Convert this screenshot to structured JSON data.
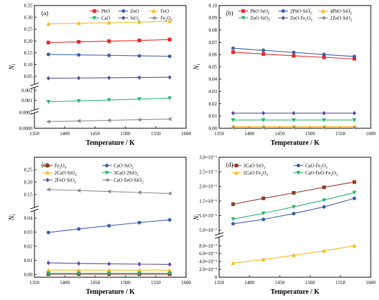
{
  "chart_data": [
    {
      "panel": "(a)",
      "type": "line",
      "title": "",
      "xlabel": "Temperature / K",
      "ylabel": "N_i",
      "xlim": [
        1350,
        1600
      ],
      "x_ticks": [
        1350,
        1400,
        1450,
        1500,
        1550,
        1600
      ],
      "x": [
        1373,
        1423,
        1473,
        1523,
        1573
      ],
      "segments": [
        {
          "ylim": [
            0.0,
            0.0001
          ],
          "ticks": [
            "0.0000",
            "0.0001"
          ]
        },
        {
          "ylim": [
            0.0,
            0.0022
          ],
          "ticks": [
            "0.001",
            "0.002"
          ]
        },
        {
          "ylim": [
            0.02,
            0.35
          ],
          "ticks": [
            "0.05",
            "0.10",
            "0.15",
            "0.20",
            "0.25",
            "0.30",
            "0.35"
          ]
        }
      ],
      "series": [
        {
          "name": "PbO",
          "marker": "square",
          "color": "#e8262a",
          "values": [
            0.193,
            0.196,
            0.199,
            0.202,
            0.206
          ]
        },
        {
          "name": "ZnO",
          "marker": "circle",
          "color": "#3a5ea8",
          "values": [
            0.143,
            0.141,
            0.139,
            0.137,
            0.135
          ]
        },
        {
          "name": "FeO",
          "marker": "triangle-up",
          "color": "#f5b921",
          "values": [
            0.272,
            0.275,
            0.277,
            0.28,
            0.283
          ]
        },
        {
          "name": "CaO",
          "marker": "triangle-down",
          "color": "#2bb673",
          "values": [
            0.00085,
            0.00094,
            0.00103,
            0.00112,
            0.00122
          ]
        },
        {
          "name": "SiO2",
          "marker": "diamond",
          "color": "#5b4a9e",
          "values": [
            0.042,
            0.043,
            0.044,
            0.045,
            0.046
          ]
        },
        {
          "name": "Fe2O3",
          "marker": "triangle-left",
          "color": "#8c8c8c",
          "values": [
            4.2e-05,
            4.6e-05,
            5e-05,
            5.4e-05,
            5.8e-05
          ]
        }
      ]
    },
    {
      "panel": "(b)",
      "type": "line",
      "title": "",
      "xlabel": "Temperature / K",
      "ylabel": "N_i",
      "xlim": [
        1350,
        1600
      ],
      "x_ticks": [
        1350,
        1400,
        1450,
        1500,
        1550,
        1600
      ],
      "x": [
        1373,
        1423,
        1473,
        1523,
        1573
      ],
      "segments": [
        {
          "ylim": [
            0.0,
            0.1
          ],
          "ticks": [
            "0.00",
            "0.01",
            "0.02",
            "0.03",
            "0.04",
            "0.05",
            "0.06",
            "0.07",
            "0.08",
            "0.09",
            "0.10"
          ]
        }
      ],
      "series": [
        {
          "name": "PbO·SiO2",
          "marker": "square",
          "color": "#e8262a",
          "values": [
            0.062,
            0.0605,
            0.059,
            0.0578,
            0.0566
          ]
        },
        {
          "name": "2PbO·SiO2",
          "marker": "circle",
          "color": "#3a5ea8",
          "values": [
            0.0652,
            0.0635,
            0.0618,
            0.0601,
            0.0585
          ]
        },
        {
          "name": "4PbO·SiO2",
          "marker": "triangle-up",
          "color": "#f5b921",
          "values": [
            0.0015,
            0.0015,
            0.0015,
            0.0015,
            0.0015
          ]
        },
        {
          "name": "ZnO·SiO2",
          "marker": "triangle-down",
          "color": "#2bb673",
          "values": [
            0.0067,
            0.0067,
            0.0067,
            0.0067,
            0.0067
          ]
        },
        {
          "name": "ZnO·Fe2O3",
          "marker": "diamond",
          "color": "#5b4a9e",
          "values": [
            0.0123,
            0.0123,
            0.0123,
            0.0123,
            0.0123
          ]
        },
        {
          "name": "2ZnO·SiO2",
          "marker": "triangle-left",
          "color": "#8c8c8c",
          "values": [
            0.0004,
            0.0004,
            0.0004,
            0.0004,
            0.0004
          ]
        }
      ]
    },
    {
      "panel": "(c)",
      "type": "line",
      "title": "",
      "xlabel": "Temperature / K",
      "ylabel": "N_i",
      "xlim": [
        1350,
        1600
      ],
      "x_ticks": [
        1350,
        1400,
        1450,
        1500,
        1550,
        1600
      ],
      "x": [
        1373,
        1423,
        1473,
        1523,
        1573
      ],
      "segments": [
        {
          "ylim": [
            -0.002,
            0.045
          ],
          "ticks": [
            "0.00",
            "0.01",
            "0.02",
            "0.03",
            "0.04"
          ]
        },
        {
          "ylim": [
            0.1,
            0.3
          ],
          "ticks": [
            "0.15",
            "0.20",
            "0.25"
          ]
        }
      ],
      "series": [
        {
          "name": "Fe3O4",
          "marker": "square",
          "color": "#8b3a1e",
          "values": [
            0.0002,
            0.0002,
            0.0002,
            0.0002,
            0.0002
          ]
        },
        {
          "name": "CaO·SiO2",
          "marker": "circle",
          "color": "#3a5ea8",
          "values": [
            0.0298,
            0.0323,
            0.0346,
            0.0368,
            0.0388
          ]
        },
        {
          "name": "2CaO·SiO2",
          "marker": "triangle-up",
          "color": "#f5b921",
          "values": [
            0.003,
            0.003,
            0.003,
            0.003,
            0.003
          ]
        },
        {
          "name": "3CaO·2SiO2",
          "marker": "triangle-down",
          "color": "#2bb673",
          "values": [
            0.0008,
            0.0008,
            0.0008,
            0.0008,
            0.0008
          ]
        },
        {
          "name": "2FeO·SiO2",
          "marker": "diamond",
          "color": "#5b4a9e",
          "values": [
            0.0082,
            0.0078,
            0.0075,
            0.0073,
            0.0071
          ]
        },
        {
          "name": "CaO·FeO·SiO2",
          "marker": "triangle-left",
          "color": "#8c8c8c",
          "values": [
            0.17,
            0.166,
            0.162,
            0.158,
            0.154
          ]
        }
      ]
    },
    {
      "panel": "(d)",
      "type": "line",
      "title": "",
      "xlabel": "Temperature / K",
      "ylabel": "N_i",
      "xlim": [
        1350,
        1600
      ],
      "x_ticks": [
        1350,
        1400,
        1450,
        1500,
        1550,
        1600
      ],
      "x": [
        1373,
        1423,
        1473,
        1523,
        1573
      ],
      "segments": [
        {
          "ylim": [
            0.0,
            1e-08
          ],
          "ticks": [
            "0",
            "2.0×10⁻⁹",
            "4.0×10⁻⁹",
            "6.0×10⁻⁹",
            "8.0×10⁻⁹"
          ]
        },
        {
          "ylim": [
            4e-07,
            3e-06
          ],
          "ticks": [
            "5.0×10⁻⁷",
            "1.0×10⁻⁶",
            "1.5×10⁻⁶",
            "2.0×10⁻⁶",
            "2.5×10⁻⁶",
            "3.0×10⁻⁶"
          ]
        }
      ],
      "series": [
        {
          "name": "3CaO·SiO2",
          "marker": "square",
          "color": "#8b3a1e",
          "values": [
            1.39e-06,
            1.59e-06,
            1.78e-06,
            1.97e-06,
            2.15e-06
          ]
        },
        {
          "name": "CaO·Fe2O3",
          "marker": "circle",
          "color": "#3a5ea8",
          "values": [
            7.2e-07,
            8.7e-07,
            1.07e-06,
            1.3e-06,
            1.59e-06
          ]
        },
        {
          "name": "2CaO·Fe2O3",
          "marker": "triangle-up",
          "color": "#f5b921",
          "values": [
            3.6e-09,
            4.5e-09,
            5.6e-09,
            6.7e-09,
            8e-09
          ]
        },
        {
          "name": "CaO·FeO·Fe2O3",
          "marker": "triangle-down",
          "color": "#2bb673",
          "values": [
            8.8e-07,
            1.08e-06,
            1.3e-06,
            1.53e-06,
            1.79e-06
          ]
        }
      ]
    }
  ]
}
